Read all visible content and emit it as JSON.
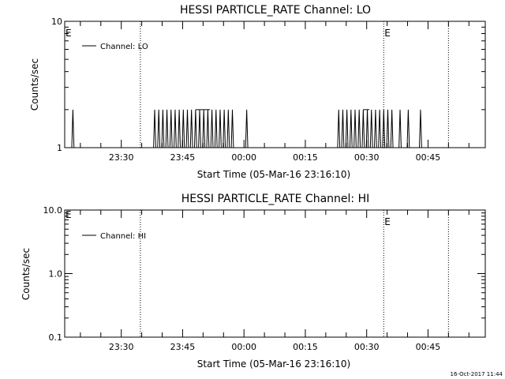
{
  "chart_data": [
    {
      "type": "line",
      "title": "HESSI PARTICLE_RATE Channel: LO",
      "xlabel": "Start Time (05-Mar-16 23:16:10)",
      "ylabel": "Counts/sec",
      "y_scale": "log",
      "ylim": [
        1,
        10
      ],
      "y_ticks": [
        "1",
        "10"
      ],
      "xlim": [
        "23:16:10",
        "00:59:00"
      ],
      "x_ticks": [
        "23:30",
        "23:45",
        "00:00",
        "00:15",
        "00:30",
        "00:45"
      ],
      "legend": "top-left",
      "series": [
        {
          "name": "Channel: LO",
          "color": "#000000",
          "spikes": [
            "23:18:10",
            "23:38:10",
            "23:39:10",
            "23:40:10",
            "23:41:10",
            "23:42:10",
            "23:43:10",
            "23:44:10",
            "23:45:10",
            "23:46:10",
            "23:47:10",
            "23:48:10",
            "23:49:10",
            "23:50:10",
            "23:51:10",
            "23:52:10",
            "23:53:10",
            "23:54:10",
            "23:55:10",
            "23:56:10",
            "23:57:10",
            "24:00:40",
            "00:23:10",
            "00:24:10",
            "00:25:10",
            "00:26:10",
            "00:27:10",
            "00:28:10",
            "00:29:10",
            "00:30:10",
            "00:31:10",
            "00:32:10",
            "00:33:10",
            "00:34:10",
            "00:35:10",
            "00:36:10",
            "00:38:10",
            "00:40:10",
            "00:43:10"
          ],
          "plateaus": [
            [
              "23:48:10",
              "23:51:40"
            ],
            [
              "00:29:10",
              "00:30:40"
            ]
          ],
          "spike_value": 2,
          "baseline": 1
        }
      ],
      "markers": [
        {
          "time": "23:34:40",
          "label": ""
        },
        {
          "time": "00:34:10",
          "label": "E"
        },
        {
          "time": "00:50:00",
          "label": ""
        }
      ],
      "corner_label": "E"
    },
    {
      "type": "line",
      "title": "HESSI PARTICLE_RATE Channel: HI",
      "xlabel": "Start Time (05-Mar-16 23:16:10)",
      "ylabel": "Counts/sec",
      "y_scale": "log",
      "ylim": [
        0.1,
        10
      ],
      "y_ticks": [
        "0.1",
        "1.0",
        "10.0"
      ],
      "xlim": [
        "23:16:10",
        "00:59:00"
      ],
      "x_ticks": [
        "23:30",
        "23:45",
        "00:00",
        "00:15",
        "00:30",
        "00:45"
      ],
      "legend": "top-left",
      "series": [
        {
          "name": "Channel: HI",
          "color": "#000000",
          "spikes": [],
          "plateaus": []
        }
      ],
      "markers": [
        {
          "time": "23:34:40",
          "label": ""
        },
        {
          "time": "00:34:10",
          "label": "E"
        },
        {
          "time": "00:50:00",
          "label": ""
        }
      ],
      "corner_label": "E"
    }
  ],
  "footer": {
    "timestamp": "16-Oct-2017 11:44"
  }
}
